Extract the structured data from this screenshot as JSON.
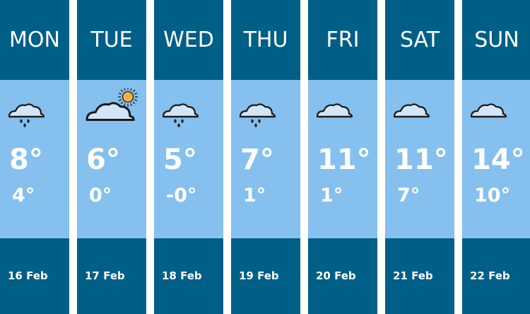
{
  "colors": {
    "band": "#005f87",
    "panel": "#85c0ee",
    "text": "#ffffff"
  },
  "days": [
    {
      "day": "MON",
      "high": "8°",
      "low": "4°",
      "date": "16 Feb",
      "icon": "cloud-rain-icon"
    },
    {
      "day": "TUE",
      "high": "6°",
      "low": "0°",
      "date": "17 Feb",
      "icon": "cloud-sun-icon"
    },
    {
      "day": "WED",
      "high": "5°",
      "low": "-0°",
      "date": "18 Feb",
      "icon": "cloud-rain-icon"
    },
    {
      "day": "THU",
      "high": "7°",
      "low": "1°",
      "date": "19 Feb",
      "icon": "cloud-rain-icon"
    },
    {
      "day": "FRI",
      "high": "11°",
      "low": "1°",
      "date": "20 Feb",
      "icon": "cloud-icon"
    },
    {
      "day": "SAT",
      "high": "11°",
      "low": "7°",
      "date": "21 Feb",
      "icon": "cloud-icon"
    },
    {
      "day": "SUN",
      "high": "14°",
      "low": "10°",
      "date": "22 Feb",
      "icon": "cloud-icon"
    }
  ]
}
